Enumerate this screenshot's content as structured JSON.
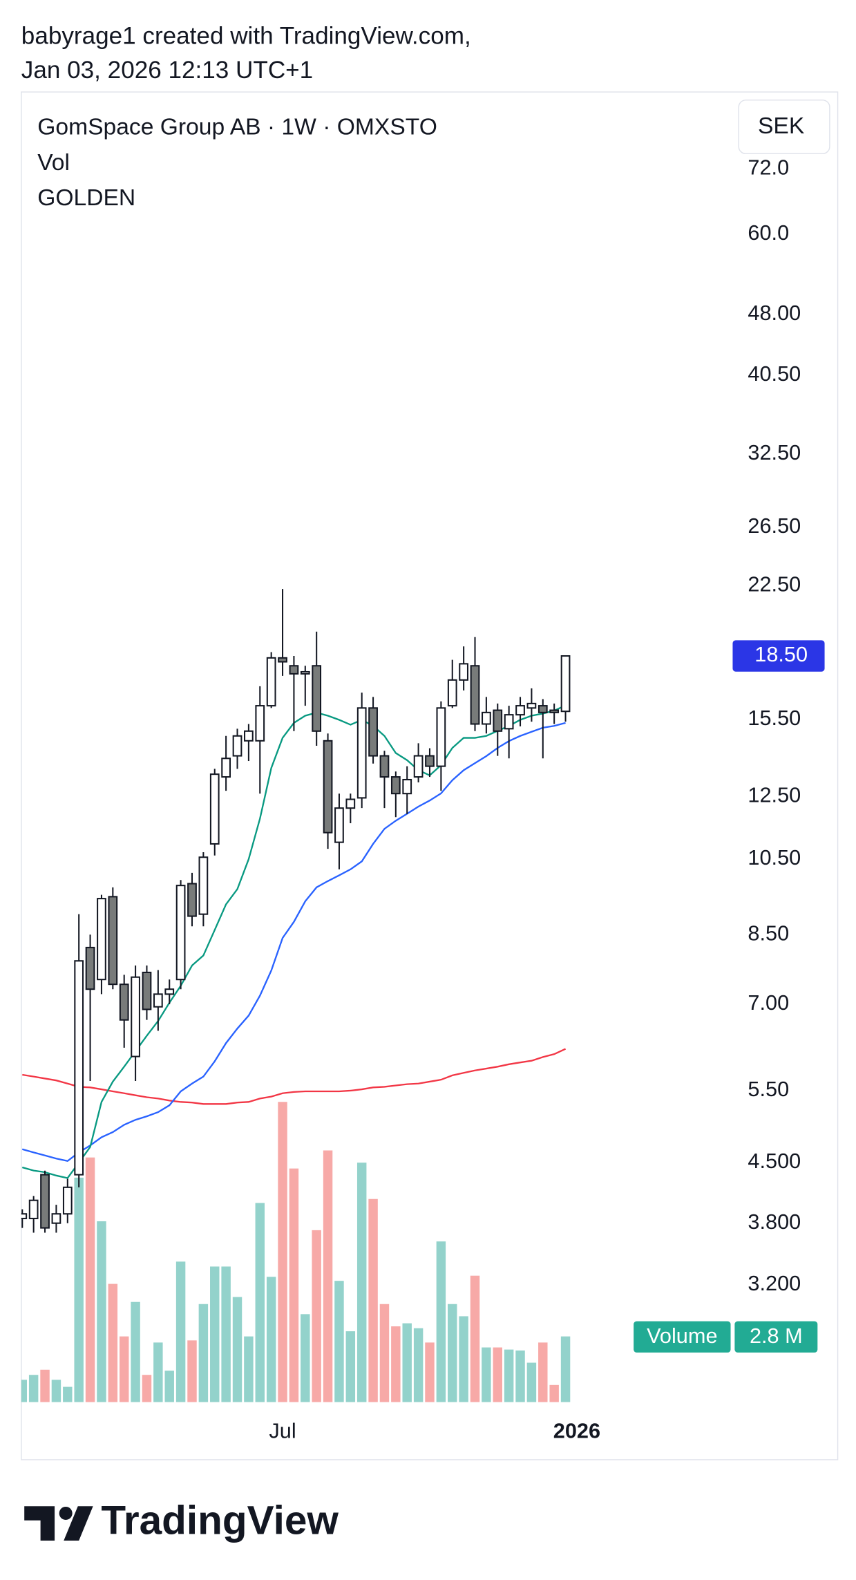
{
  "header": {
    "line1": "babyrage1 created with TradingView.com,",
    "line2": "Jan 03, 2026 12:13 UTC+1"
  },
  "footer": {
    "brand": "TradingView"
  },
  "chart_data": {
    "type": "candlestick",
    "title": "GomSpace Group AB · 1W · OMXSTO",
    "legend_lines": [
      "Vol",
      "GOLDEN"
    ],
    "currency": "SEK",
    "log_scale": true,
    "ylim": [
      2.3,
      89
    ],
    "yticks": [
      {
        "value": 72,
        "label": "72.0"
      },
      {
        "value": 60,
        "label": "60.0"
      },
      {
        "value": 48,
        "label": "48.00"
      },
      {
        "value": 40.5,
        "label": "40.50"
      },
      {
        "value": 32.5,
        "label": "32.50"
      },
      {
        "value": 26.5,
        "label": "26.50"
      },
      {
        "value": 22.5,
        "label": "22.50"
      },
      {
        "value": 15.5,
        "label": "15.50"
      },
      {
        "value": 12.5,
        "label": "12.50"
      },
      {
        "value": 10.5,
        "label": "10.50"
      },
      {
        "value": 8.5,
        "label": "8.50"
      },
      {
        "value": 7,
        "label": "7.00"
      },
      {
        "value": 5.5,
        "label": "5.50"
      },
      {
        "value": 4.5,
        "label": "4.500"
      },
      {
        "value": 3.8,
        "label": "3.800"
      },
      {
        "value": 3.2,
        "label": "3.200"
      }
    ],
    "last_price": {
      "value": 18.5,
      "label": "18.50"
    },
    "categories": [
      null,
      null,
      null,
      null,
      null,
      null,
      null,
      null,
      null,
      null,
      null,
      null,
      null,
      null,
      null,
      null,
      null,
      null,
      null,
      null,
      null,
      null,
      null,
      "Jul",
      null,
      null,
      null,
      null,
      null,
      null,
      null,
      null,
      null,
      null,
      null,
      null,
      null,
      null,
      null,
      null,
      null,
      null,
      null,
      null,
      null,
      null,
      null,
      null,
      null,
      "2026"
    ],
    "open": [
      3.85,
      3.85,
      4.35,
      3.8,
      3.9,
      4.35,
      8.2,
      7.5,
      9.45,
      7.4,
      6.05,
      7.65,
      6.95,
      7.2,
      7.5,
      9.8,
      9.0,
      10.95,
      13.2,
      14.0,
      14.6,
      14.6,
      16.1,
      18.4,
      18.0,
      17.6,
      18.0,
      14.6,
      11.0,
      12.1,
      12.45,
      16.0,
      14.0,
      13.2,
      12.6,
      13.2,
      14.0,
      13.6,
      16.1,
      17.3,
      18.0,
      15.3,
      15.9,
      15.1,
      15.7,
      16.0,
      16.1,
      15.9,
      15.85,
      null
    ],
    "high": [
      3.95,
      4.1,
      4.4,
      4.0,
      4.3,
      9.0,
      8.5,
      9.5,
      9.7,
      7.6,
      7.8,
      7.8,
      7.7,
      7.5,
      9.9,
      10.1,
      10.7,
      13.5,
      14.8,
      15.1,
      15.3,
      17.0,
      18.7,
      22.3,
      18.5,
      18.0,
      19.8,
      14.9,
      12.6,
      12.6,
      16.7,
      16.5,
      14.2,
      13.4,
      13.6,
      14.5,
      14.3,
      16.3,
      18.3,
      19.0,
      19.5,
      16.5,
      16.2,
      16.1,
      16.5,
      16.9,
      16.4,
      16.2,
      18.5,
      null
    ],
    "low": [
      3.75,
      3.7,
      3.7,
      3.7,
      3.8,
      4.2,
      5.65,
      7.2,
      7.3,
      6.2,
      5.65,
      6.7,
      6.5,
      7.0,
      7.3,
      8.7,
      8.7,
      10.6,
      12.7,
      13.5,
      13.8,
      12.6,
      16.0,
      17.5,
      15.0,
      16.1,
      14.4,
      10.8,
      10.2,
      11.6,
      12.1,
      13.7,
      12.1,
      11.8,
      11.9,
      13.0,
      13.2,
      12.7,
      16.0,
      16.8,
      15.0,
      14.9,
      14.0,
      13.9,
      15.2,
      15.4,
      13.9,
      15.3,
      15.4,
      null
    ],
    "close": [
      3.9,
      4.05,
      3.75,
      3.9,
      4.2,
      7.9,
      7.3,
      9.4,
      7.4,
      6.7,
      7.55,
      6.9,
      7.2,
      7.3,
      9.75,
      8.95,
      10.55,
      13.3,
      13.9,
      14.8,
      15.0,
      16.1,
      18.4,
      18.2,
      17.6,
      17.7,
      15.0,
      11.3,
      12.1,
      12.4,
      16.0,
      14.0,
      13.2,
      12.6,
      13.1,
      14.0,
      13.6,
      16.0,
      17.3,
      18.1,
      15.3,
      15.8,
      15.0,
      15.7,
      16.1,
      16.2,
      15.8,
      15.8,
      18.5,
      null
    ],
    "up_color": "#ffffff",
    "down_color": "#787b7a",
    "moving_averages": [
      {
        "color": "#f23645",
        "values": [
          5.75,
          5.72,
          5.69,
          5.66,
          5.61,
          5.56,
          5.55,
          5.52,
          5.49,
          5.46,
          5.43,
          5.4,
          5.38,
          5.35,
          5.33,
          5.32,
          5.3,
          5.3,
          5.3,
          5.32,
          5.33,
          5.38,
          5.41,
          5.46,
          5.48,
          5.49,
          5.49,
          5.49,
          5.49,
          5.5,
          5.52,
          5.55,
          5.56,
          5.58,
          5.6,
          5.61,
          5.64,
          5.67,
          5.74,
          5.78,
          5.82,
          5.85,
          5.88,
          5.92,
          5.95,
          5.98,
          6.04,
          6.09,
          6.18,
          null
        ]
      },
      {
        "color": "#2962ff",
        "values": [
          4.67,
          4.63,
          4.59,
          4.55,
          4.52,
          4.63,
          4.72,
          4.83,
          4.9,
          5.0,
          5.07,
          5.12,
          5.18,
          5.28,
          5.49,
          5.61,
          5.72,
          5.97,
          6.28,
          6.54,
          6.78,
          7.17,
          7.69,
          8.42,
          8.81,
          9.33,
          9.7,
          9.87,
          10.03,
          10.2,
          10.43,
          10.95,
          11.42,
          11.68,
          11.91,
          12.15,
          12.36,
          12.61,
          13.08,
          13.45,
          13.72,
          13.99,
          14.31,
          14.59,
          14.8,
          14.97,
          15.14,
          15.22,
          15.35,
          null
        ]
      },
      {
        "color": "#089981",
        "values": [
          4.44,
          4.4,
          4.38,
          4.34,
          4.31,
          4.5,
          4.7,
          5.33,
          5.64,
          5.88,
          6.14,
          6.41,
          6.68,
          7.03,
          7.37,
          7.8,
          8.02,
          8.61,
          9.25,
          9.65,
          10.49,
          11.75,
          13.53,
          14.72,
          15.35,
          15.66,
          15.79,
          15.66,
          15.48,
          15.27,
          15.48,
          15.22,
          14.8,
          14.11,
          13.83,
          13.45,
          13.26,
          13.64,
          14.31,
          14.72,
          14.72,
          14.8,
          15.01,
          15.22,
          15.48,
          15.66,
          15.75,
          15.88,
          16.11,
          null
        ]
      }
    ],
    "volume": {
      "label": "Volume",
      "up_color": "#93d2cb",
      "down_color": "#f7a9a7",
      "values": [
        0.95,
        1.16,
        1.38,
        0.95,
        0.65,
        9.57,
        10.43,
        7.71,
        5.04,
        2.8,
        4.27,
        1.16,
        2.54,
        1.34,
        5.99,
        2.63,
        4.18,
        5.78,
        5.78,
        4.48,
        2.8,
        8.49,
        5.34,
        12.8,
        9.96,
        3.75,
        7.33,
        10.73,
        5.17,
        3.02,
        10.21,
        8.66,
        4.18,
        3.23,
        3.36,
        3.15,
        2.54,
        6.85,
        4.18,
        3.66,
        5.39,
        2.33,
        2.33,
        2.24,
        2.2,
        1.68,
        2.54,
        0.73,
        2.8,
        null
      ],
      "last": {
        "value": 2.8,
        "label": "2.8 M"
      }
    }
  }
}
